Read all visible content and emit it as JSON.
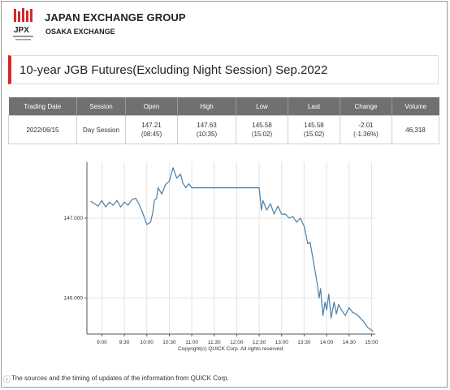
{
  "brand": {
    "logo_text": "JPX",
    "title": "JAPAN EXCHANGE GROUP",
    "subtitle": "OSAKA EXCHANGE"
  },
  "page_title": "10-year JGB Futures(Excluding Night Session) Sep.2022",
  "table": {
    "headers": [
      "Trading Date",
      "Session",
      "Open",
      "High",
      "Low",
      "Last",
      "Change",
      "Volume"
    ],
    "row": {
      "date": "2022/06/15",
      "session": "Day Session",
      "open": "147.21",
      "open_time": "(08:45)",
      "high": "147.63",
      "high_time": "(10:35)",
      "low": "145.58",
      "low_time": "(15:02)",
      "last": "145.58",
      "last_time": "(15:02)",
      "change": "-2.01",
      "change_pct": "(-1.36%)",
      "volume": "46,318"
    }
  },
  "chart_data": {
    "type": "line",
    "ytick_labels": [
      "147.000",
      "146.000"
    ],
    "ylim": [
      145.55,
      147.7
    ],
    "xtick_labels": [
      "9:00",
      "9:30",
      "10:00",
      "10:30",
      "11:00",
      "11:30",
      "12:00",
      "12:30",
      "13:00",
      "13:30",
      "14:00",
      "14:30",
      "15:00"
    ],
    "grid": true,
    "copyright": "Copyright(c) QUICK Corp. All rights reserved.",
    "series": [
      {
        "color": "#4a7fa8",
        "points": [
          [
            "8:45",
            147.21
          ],
          [
            "8:50",
            147.18
          ],
          [
            "8:55",
            147.15
          ],
          [
            "9:00",
            147.22
          ],
          [
            "9:05",
            147.14
          ],
          [
            "9:10",
            147.2
          ],
          [
            "9:15",
            147.16
          ],
          [
            "9:20",
            147.22
          ],
          [
            "9:25",
            147.14
          ],
          [
            "9:30",
            147.2
          ],
          [
            "9:35",
            147.16
          ],
          [
            "9:40",
            147.23
          ],
          [
            "9:45",
            147.25
          ],
          [
            "9:50",
            147.17
          ],
          [
            "9:55",
            147.05
          ],
          [
            "10:00",
            146.92
          ],
          [
            "10:05",
            146.95
          ],
          [
            "10:08",
            147.07
          ],
          [
            "10:10",
            147.22
          ],
          [
            "10:13",
            147.25
          ],
          [
            "10:15",
            147.38
          ],
          [
            "10:20",
            147.3
          ],
          [
            "10:25",
            147.42
          ],
          [
            "10:30",
            147.46
          ],
          [
            "10:35",
            147.63
          ],
          [
            "10:40",
            147.5
          ],
          [
            "10:45",
            147.55
          ],
          [
            "10:48",
            147.44
          ],
          [
            "10:52",
            147.38
          ],
          [
            "10:56",
            147.43
          ],
          [
            "11:00",
            147.38
          ],
          [
            "11:30",
            147.38
          ],
          [
            "12:30",
            147.38
          ],
          [
            "12:33",
            147.1
          ],
          [
            "12:35",
            147.22
          ],
          [
            "12:40",
            147.1
          ],
          [
            "12:45",
            147.18
          ],
          [
            "12:50",
            147.05
          ],
          [
            "12:55",
            147.15
          ],
          [
            "13:00",
            147.05
          ],
          [
            "13:05",
            147.05
          ],
          [
            "13:10",
            147.0
          ],
          [
            "13:15",
            147.02
          ],
          [
            "13:20",
            146.95
          ],
          [
            "13:25",
            147.0
          ],
          [
            "13:30",
            146.9
          ],
          [
            "13:35",
            146.68
          ],
          [
            "13:38",
            146.7
          ],
          [
            "13:42",
            146.48
          ],
          [
            "13:45",
            146.32
          ],
          [
            "13:48",
            146.15
          ],
          [
            "13:50",
            146.0
          ],
          [
            "13:52",
            146.12
          ],
          [
            "13:55",
            145.78
          ],
          [
            "13:58",
            145.95
          ],
          [
            "14:00",
            145.85
          ],
          [
            "14:03",
            146.05
          ],
          [
            "14:06",
            145.75
          ],
          [
            "14:10",
            145.95
          ],
          [
            "14:13",
            145.8
          ],
          [
            "14:16",
            145.92
          ],
          [
            "14:20",
            145.85
          ],
          [
            "14:25",
            145.78
          ],
          [
            "14:30",
            145.88
          ],
          [
            "14:35",
            145.82
          ],
          [
            "14:40",
            145.8
          ],
          [
            "14:45",
            145.75
          ],
          [
            "14:50",
            145.7
          ],
          [
            "14:55",
            145.63
          ],
          [
            "15:00",
            145.6
          ],
          [
            "15:02",
            145.58
          ]
        ]
      }
    ]
  },
  "footnote": "The sources and the timing of updates of the information from QUICK Corp.",
  "colors": {
    "accent": "#d62828",
    "line": "#4a7fa8",
    "header_bg": "#707070"
  }
}
